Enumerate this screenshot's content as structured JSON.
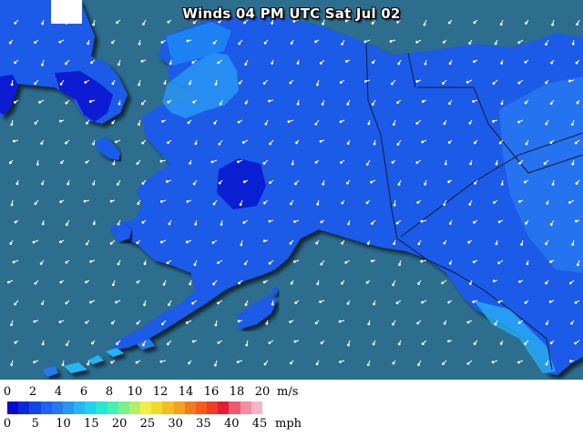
{
  "title": "Winds 04 PM UTC Sat Jul 02",
  "legend": {
    "ms_ticks": [
      "0",
      "2",
      "4",
      "6",
      "8",
      "10",
      "12",
      "14",
      "16",
      "18",
      "20"
    ],
    "ms_unit": "m/s",
    "mph_ticks": [
      "0",
      "5",
      "10",
      "15",
      "20",
      "25",
      "30",
      "35",
      "40",
      "45"
    ],
    "mph_unit": "mph",
    "scale_colors": [
      "#0a0ad2",
      "#0a28dc",
      "#1446e6",
      "#1e64f0",
      "#2878f0",
      "#2896f5",
      "#28b4f5",
      "#1ed2f0",
      "#28e6d2",
      "#46f0b4",
      "#78f08c",
      "#b4f064",
      "#f0f046",
      "#f0dc28",
      "#f5be1e",
      "#f5a01e",
      "#f57a1e",
      "#f55a1e",
      "#f03c28",
      "#e61e32",
      "#f05a6e",
      "#f58ca0",
      "#fab4c8"
    ]
  },
  "map": {
    "background_color": "#2d6e8f",
    "land_color": "#1b5ae8",
    "low_wind_color": "#0a1ed2",
    "high_wind_color": "#1e8cf5"
  }
}
